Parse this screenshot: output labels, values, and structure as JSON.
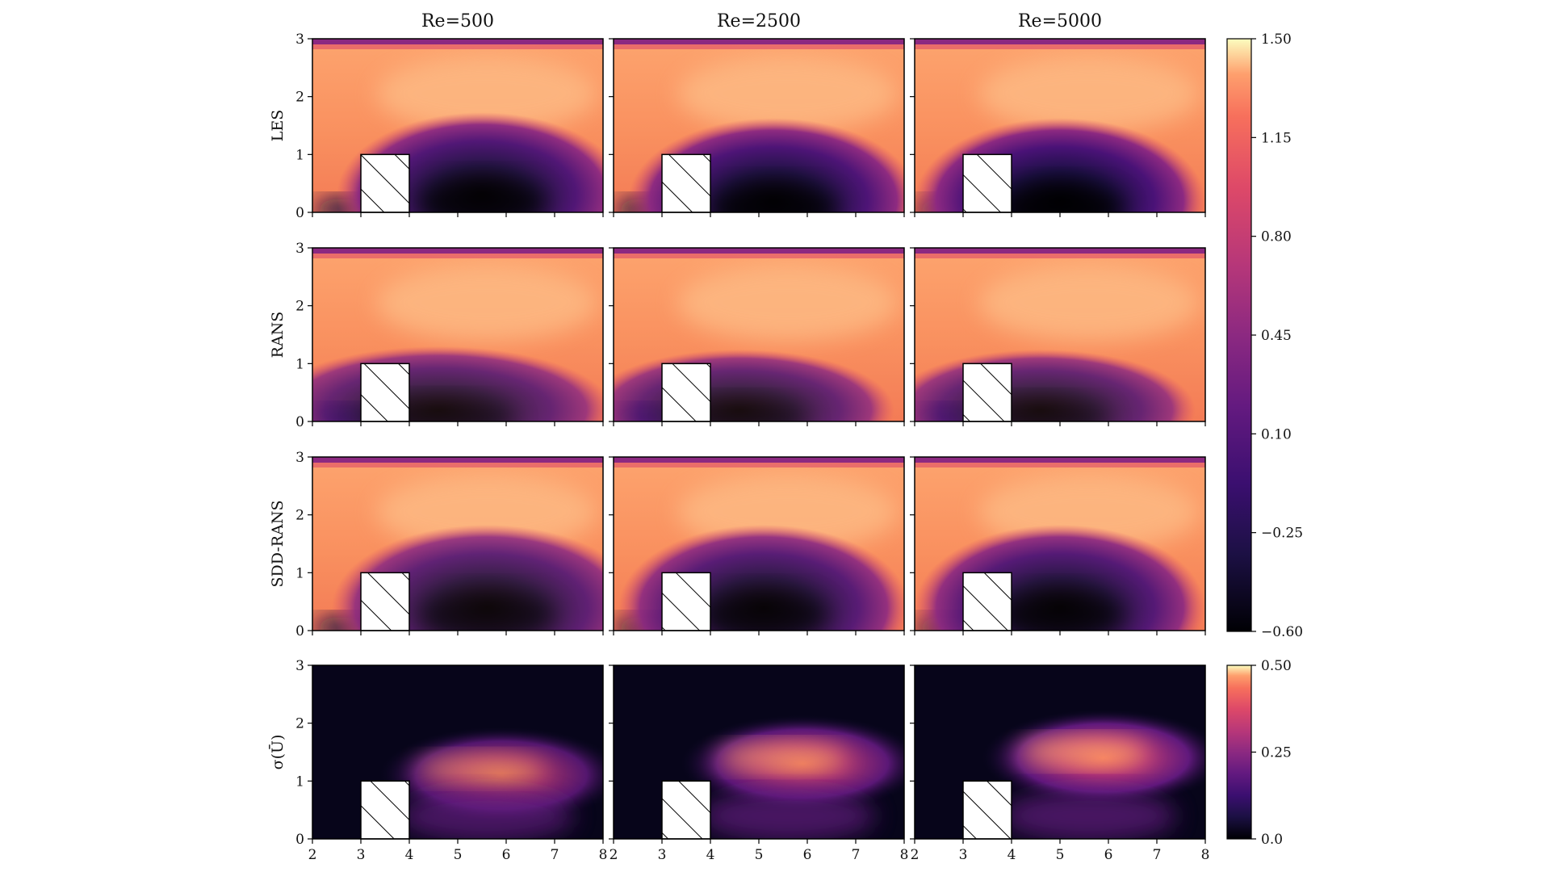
{
  "chart_data": {
    "type": "heatmap",
    "description_kind": "contour-grid",
    "x_range": [
      2,
      8
    ],
    "y_range": [
      0,
      3
    ],
    "x_ticks": [
      "2",
      "3",
      "4",
      "5",
      "6",
      "7",
      "8"
    ],
    "y_ticks": [
      "0",
      "1",
      "2",
      "3"
    ],
    "column_titles": [
      "Re=500",
      "Re=2500",
      "Re=5000"
    ],
    "row_labels": [
      "LES",
      "RANS",
      "SDD-RANS",
      "σ(Ū)"
    ],
    "obstacle": {
      "x": [
        3,
        4
      ],
      "y": [
        0,
        1
      ],
      "hatched": true
    },
    "colorbars": [
      {
        "name": "mean",
        "ticks": [
          "1.50",
          "1.15",
          "0.80",
          "0.45",
          "0.10",
          "−0.25",
          "−0.60"
        ],
        "range": [
          -0.6,
          1.5
        ],
        "colormap": "magma"
      },
      {
        "name": "std",
        "ticks": [
          "0.50",
          "0.25",
          "0.0"
        ],
        "range": [
          0.0,
          0.5
        ],
        "colormap": "magma"
      }
    ],
    "panels": [
      {
        "row": 0,
        "col": 0,
        "field": "mean",
        "wake_center": [
          5.5,
          0.3
        ],
        "wake_extent": [
          3.0,
          1.3
        ],
        "min": -0.5
      },
      {
        "row": 0,
        "col": 1,
        "field": "mean",
        "wake_center": [
          5.3,
          0.2
        ],
        "wake_extent": [
          3.0,
          1.3
        ],
        "min": -0.55
      },
      {
        "row": 0,
        "col": 2,
        "field": "mean",
        "wake_center": [
          5.0,
          0.2
        ],
        "wake_extent": [
          3.0,
          1.3
        ],
        "min": -0.6
      },
      {
        "row": 1,
        "col": 0,
        "field": "mean",
        "wake_center": [
          4.6,
          0.2
        ],
        "wake_extent": [
          3.6,
          1.0
        ],
        "min": -0.2
      },
      {
        "row": 1,
        "col": 1,
        "field": "mean",
        "wake_center": [
          4.6,
          0.2
        ],
        "wake_extent": [
          3.2,
          0.95
        ],
        "min": -0.2
      },
      {
        "row": 1,
        "col": 2,
        "field": "mean",
        "wake_center": [
          4.6,
          0.2
        ],
        "wake_extent": [
          3.2,
          0.95
        ],
        "min": -0.2
      },
      {
        "row": 2,
        "col": 0,
        "field": "mean",
        "wake_center": [
          5.6,
          0.4
        ],
        "wake_extent": [
          3.2,
          1.3
        ],
        "min": -0.3
      },
      {
        "row": 2,
        "col": 1,
        "field": "mean",
        "wake_center": [
          5.1,
          0.4
        ],
        "wake_extent": [
          3.0,
          1.3
        ],
        "min": -0.4
      },
      {
        "row": 2,
        "col": 2,
        "field": "mean",
        "wake_center": [
          5.0,
          0.4
        ],
        "wake_extent": [
          3.0,
          1.3
        ],
        "min": -0.45
      },
      {
        "row": 3,
        "col": 0,
        "field": "std",
        "band_y": 1.1,
        "band_max": 0.28
      },
      {
        "row": 3,
        "col": 1,
        "field": "std",
        "band_y": 1.3,
        "band_max": 0.38
      },
      {
        "row": 3,
        "col": 2,
        "field": "std",
        "band_y": 1.4,
        "band_max": 0.45
      }
    ]
  }
}
